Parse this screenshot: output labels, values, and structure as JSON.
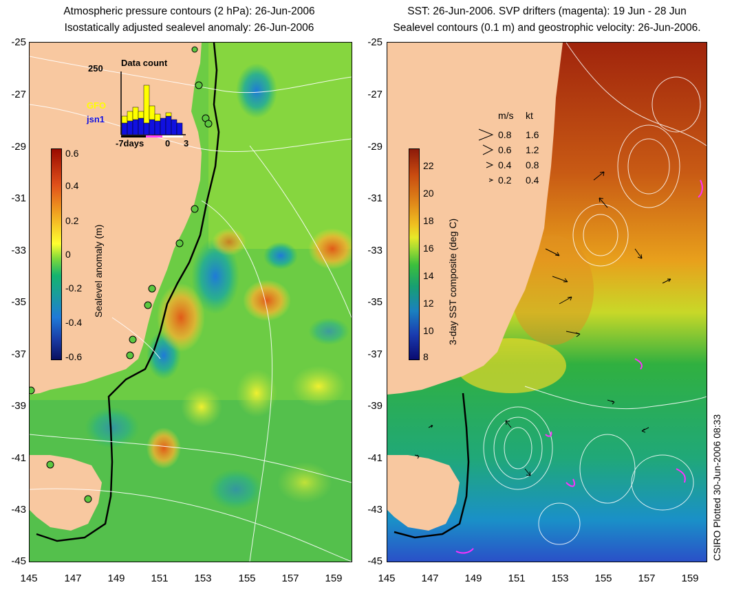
{
  "left_panel": {
    "title_line1": "Atmospheric pressure contours (2 hPa): 26-Jun-2006",
    "title_line2": "Isostatically adjusted sealevel anomaly: 26-Jun-2006",
    "colorbar": {
      "label": "Sealevel anomaly (m)",
      "ticks": [
        "0.6",
        "0.4",
        "0.2",
        "0",
        "-0.2",
        "-0.4",
        "-0.6"
      ],
      "colors": [
        "#9a0a00",
        "#e0501a",
        "#f0a020",
        "#ffff30",
        "#7fd93a",
        "#14b46e",
        "#1a9aa0",
        "#1f7ad8",
        "#1a3ea8",
        "#0a1060"
      ]
    },
    "inset": {
      "title": "Data count",
      "ymax": "250",
      "series_gfo": "GFO",
      "series_jsn1": "jsn1",
      "x_start": "-7days",
      "x_zero": "0",
      "x_end": "3",
      "gfo_color": "#ffff00",
      "jsn1_color": "#1010e0"
    }
  },
  "right_panel": {
    "title_line1": "SST: 26-Jun-2006. SVP drifters (magenta): 19 Jun - 28 Jun",
    "title_line2": "Sealevel contours (0.1 m) and geostrophic velocity: 26-Jun-2006.",
    "colorbar": {
      "label": "3-day SST composite (deg C)",
      "ticks": [
        "22",
        "20",
        "18",
        "16",
        "14",
        "12",
        "10",
        "8"
      ],
      "colors": [
        "#8c1a0a",
        "#c84a10",
        "#e08a1a",
        "#f0c020",
        "#e8e828",
        "#a8dc32",
        "#3cbf3c",
        "#18a070",
        "#1a80c0",
        "#1a3cb0",
        "#0a0a70"
      ]
    },
    "velocity_legend": {
      "header_ms": "m/s",
      "header_kt": "kt",
      "rows": [
        {
          "ms": "0.8",
          "kt": "1.6"
        },
        {
          "ms": "0.6",
          "kt": "1.2"
        },
        {
          "ms": "0.4",
          "kt": "0.8"
        },
        {
          "ms": "0.2",
          "kt": "0.4"
        }
      ]
    }
  },
  "axes": {
    "y_ticks": [
      "-25",
      "-27",
      "-29",
      "-31",
      "-33",
      "-35",
      "-37",
      "-39",
      "-41",
      "-43",
      "-45"
    ],
    "x_ticks": [
      "145",
      "147",
      "149",
      "151",
      "153",
      "155",
      "157",
      "159"
    ]
  },
  "credit": "CSIRO Plotted 30-Jun-2006 08:33",
  "colors": {
    "land": "#f8c8a0",
    "coast_line": "#000000",
    "contour": "#ffffff"
  }
}
